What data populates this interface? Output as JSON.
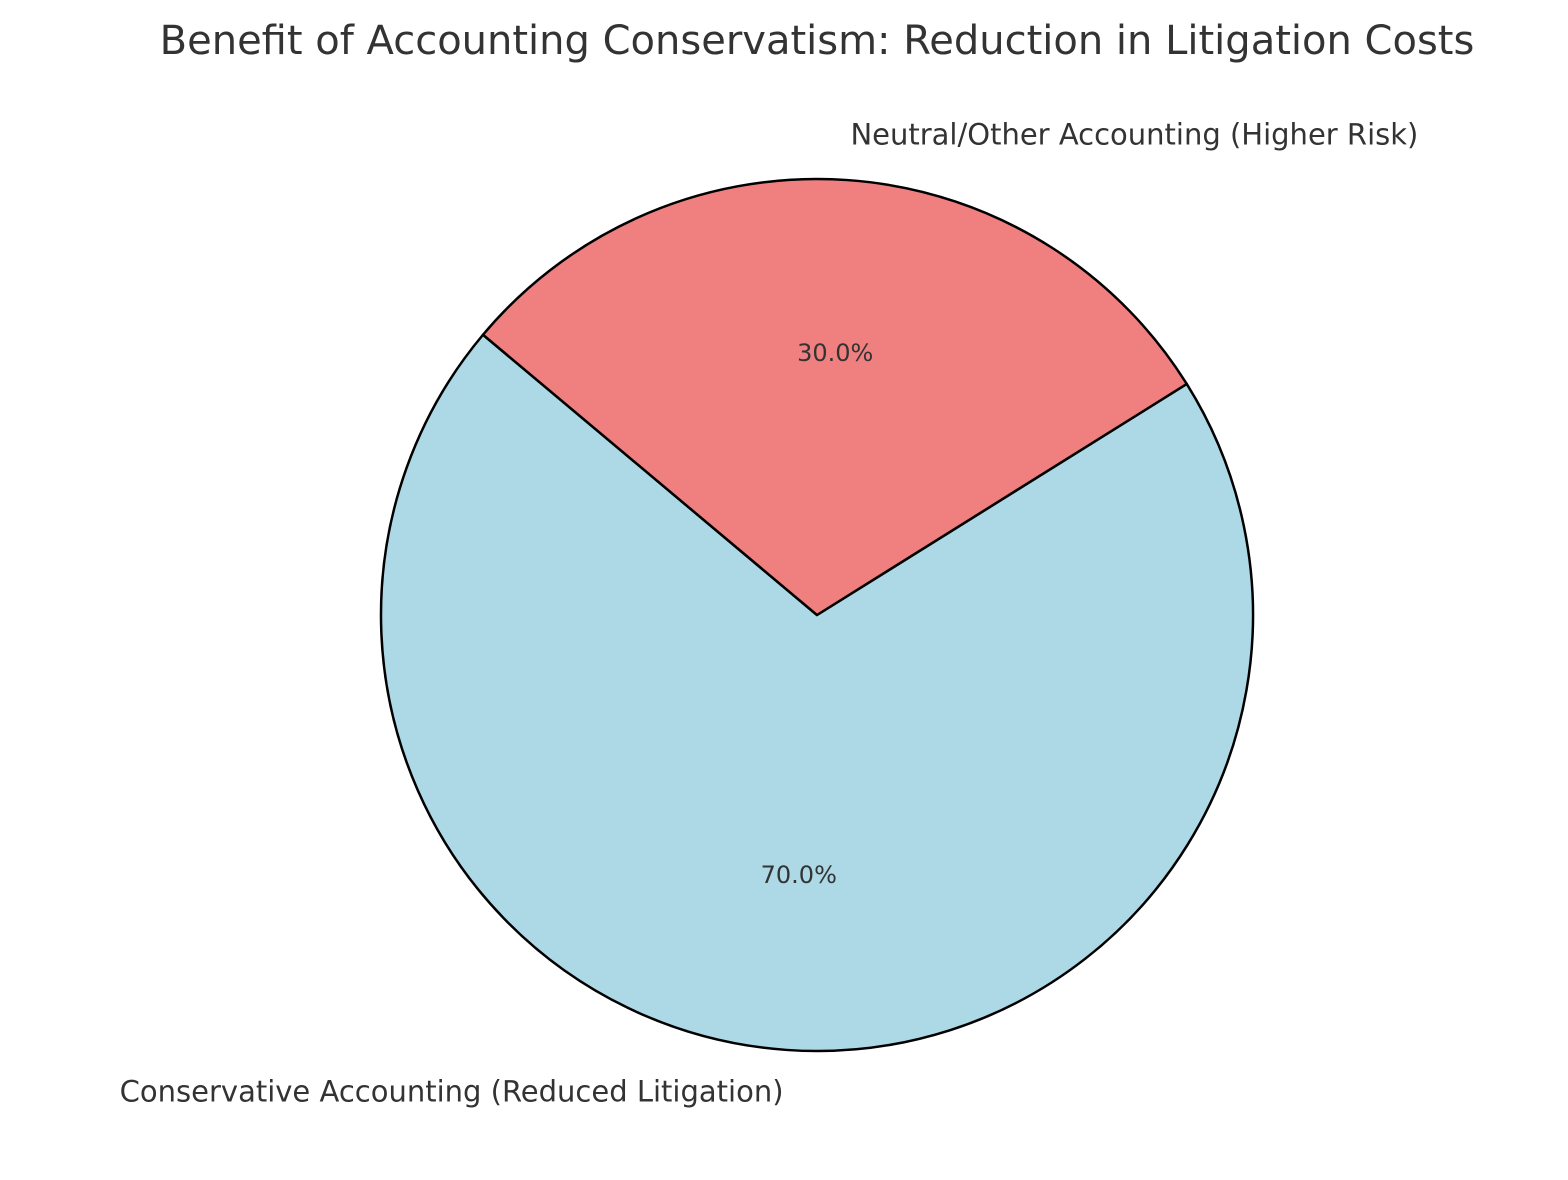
{
  "chart_data": {
    "type": "pie",
    "title": "Benefit of Accounting Conservatism: Reduction in Litigation Costs",
    "categories": [
      "Conservative Accounting (Reduced Litigation)",
      "Neutral/Other Accounting (Higher Risk)"
    ],
    "values": [
      70,
      30
    ],
    "percent_labels": [
      "70.0%",
      "30.0%"
    ],
    "colors": [
      "#add8e6",
      "#f08080"
    ],
    "edge_color": "#000000",
    "start_angle_deg": 140,
    "legend": "none"
  }
}
